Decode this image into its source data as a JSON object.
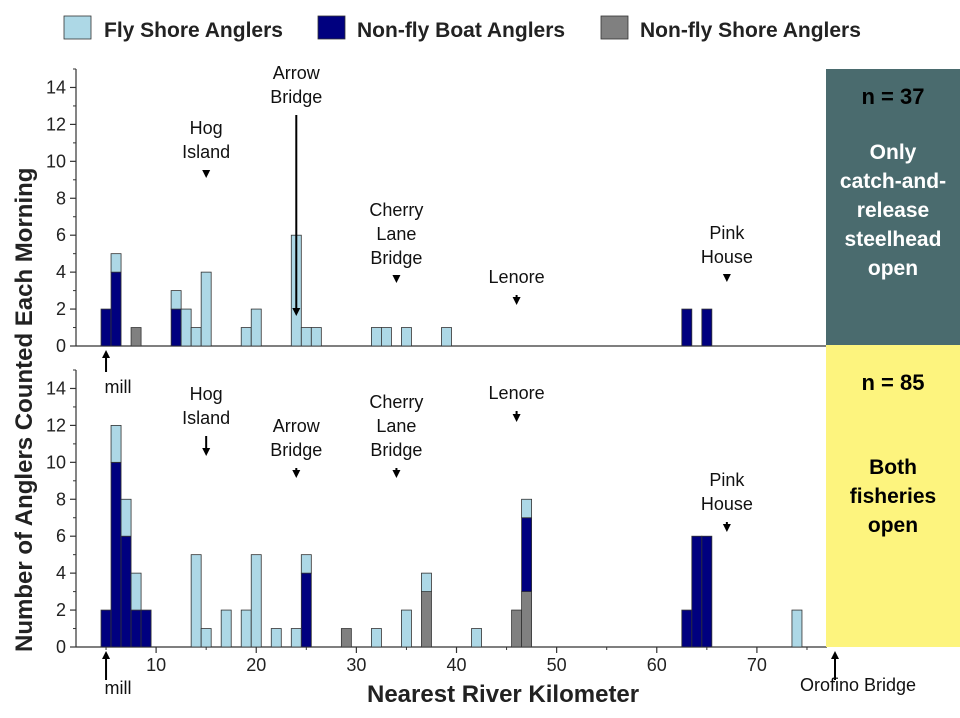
{
  "colors": {
    "fly_shore": "#add8e6",
    "nonfly_boat": "#00007f",
    "nonfly_shore": "#808080",
    "top_panel_bg": "#4a6b6e",
    "bottom_panel_bg": "#fdf47e"
  },
  "legend": {
    "fly_shore_label": "Fly Shore Anglers",
    "nonfly_boat_label": "Non-fly Boat Anglers",
    "nonfly_shore_label": "Non-fly Shore Anglers"
  },
  "axis": {
    "xlabel": "Nearest River Kilometer",
    "ylabel": "Number of Anglers Counted Each Morning"
  },
  "chart_data": [
    {
      "type": "bar",
      "stacked": true,
      "panel": "top",
      "xlabel": "Nearest River Kilometer",
      "ylabel": "Number of Anglers Counted Each Morning",
      "xlim": [
        2,
        77
      ],
      "ylim": [
        0,
        15
      ],
      "xticks": [
        10,
        20,
        30,
        40,
        50,
        60,
        70
      ],
      "yticks": [
        0,
        2,
        4,
        6,
        8,
        10,
        12,
        14
      ],
      "bars": [
        {
          "x": 5,
          "nonfly_boat": 2,
          "fly_shore": 0,
          "nonfly_shore": 0
        },
        {
          "x": 6,
          "nonfly_boat": 4,
          "fly_shore": 1,
          "nonfly_shore": 0
        },
        {
          "x": 8,
          "nonfly_boat": 0,
          "fly_shore": 0,
          "nonfly_shore": 1
        },
        {
          "x": 12,
          "nonfly_boat": 2,
          "fly_shore": 1,
          "nonfly_shore": 0
        },
        {
          "x": 13,
          "nonfly_boat": 0,
          "fly_shore": 2,
          "nonfly_shore": 0
        },
        {
          "x": 14,
          "nonfly_boat": 0,
          "fly_shore": 1,
          "nonfly_shore": 0
        },
        {
          "x": 15,
          "nonfly_boat": 0,
          "fly_shore": 4,
          "nonfly_shore": 0
        },
        {
          "x": 19,
          "nonfly_boat": 0,
          "fly_shore": 1,
          "nonfly_shore": 0
        },
        {
          "x": 20,
          "nonfly_boat": 0,
          "fly_shore": 2,
          "nonfly_shore": 0
        },
        {
          "x": 24,
          "nonfly_boat": 0,
          "fly_shore": 6,
          "nonfly_shore": 0
        },
        {
          "x": 25,
          "nonfly_boat": 0,
          "fly_shore": 1,
          "nonfly_shore": 0
        },
        {
          "x": 26,
          "nonfly_boat": 0,
          "fly_shore": 1,
          "nonfly_shore": 0
        },
        {
          "x": 32,
          "nonfly_boat": 0,
          "fly_shore": 1,
          "nonfly_shore": 0
        },
        {
          "x": 33,
          "nonfly_boat": 0,
          "fly_shore": 1,
          "nonfly_shore": 0
        },
        {
          "x": 35,
          "nonfly_boat": 0,
          "fly_shore": 1,
          "nonfly_shore": 0
        },
        {
          "x": 39,
          "nonfly_boat": 0,
          "fly_shore": 1,
          "nonfly_shore": 0
        },
        {
          "x": 63,
          "nonfly_boat": 2,
          "fly_shore": 0,
          "nonfly_shore": 0
        },
        {
          "x": 65,
          "nonfly_boat": 2,
          "fly_shore": 0,
          "nonfly_shore": 0
        }
      ],
      "annotations": [
        {
          "label_lines": [
            "Arrow",
            "Bridge"
          ],
          "x": 24,
          "dir": "down"
        },
        {
          "label_lines": [
            "Hog",
            "Island"
          ],
          "x": 15,
          "dir": "down"
        },
        {
          "label_lines": [
            "Cherry",
            "Lane",
            "Bridge"
          ],
          "x": 34,
          "dir": "down"
        },
        {
          "label_lines": [
            "Lenore"
          ],
          "x": 46,
          "dir": "down"
        },
        {
          "label_lines": [
            "Pink",
            "House"
          ],
          "x": 67,
          "dir": "down"
        },
        {
          "label_lines": [
            "mill"
          ],
          "x": 5,
          "dir": "up"
        }
      ],
      "panel_label": {
        "n": "n = 37",
        "note_lines": [
          "Only",
          "catch-and-",
          "release",
          "steelhead",
          "open"
        ]
      }
    },
    {
      "type": "bar",
      "stacked": true,
      "panel": "bottom",
      "xlabel": "Nearest River Kilometer",
      "ylabel": "Number of Anglers Counted Each Morning",
      "xlim": [
        2,
        77
      ],
      "ylim": [
        0,
        15
      ],
      "xticks": [
        10,
        20,
        30,
        40,
        50,
        60,
        70
      ],
      "yticks": [
        0,
        2,
        4,
        6,
        8,
        10,
        12,
        14
      ],
      "bars": [
        {
          "x": 5,
          "nonfly_boat": 2,
          "fly_shore": 0,
          "nonfly_shore": 0
        },
        {
          "x": 6,
          "nonfly_boat": 10,
          "fly_shore": 2,
          "nonfly_shore": 0
        },
        {
          "x": 7,
          "nonfly_boat": 6,
          "fly_shore": 2,
          "nonfly_shore": 0
        },
        {
          "x": 8,
          "nonfly_boat": 2,
          "fly_shore": 2,
          "nonfly_shore": 0
        },
        {
          "x": 9,
          "nonfly_boat": 2,
          "fly_shore": 0,
          "nonfly_shore": 0
        },
        {
          "x": 14,
          "nonfly_boat": 0,
          "fly_shore": 5,
          "nonfly_shore": 0
        },
        {
          "x": 15,
          "nonfly_boat": 0,
          "fly_shore": 1,
          "nonfly_shore": 0
        },
        {
          "x": 17,
          "nonfly_boat": 0,
          "fly_shore": 2,
          "nonfly_shore": 0
        },
        {
          "x": 19,
          "nonfly_boat": 0,
          "fly_shore": 2,
          "nonfly_shore": 0
        },
        {
          "x": 20,
          "nonfly_boat": 0,
          "fly_shore": 5,
          "nonfly_shore": 0
        },
        {
          "x": 22,
          "nonfly_boat": 0,
          "fly_shore": 1,
          "nonfly_shore": 0
        },
        {
          "x": 24,
          "nonfly_boat": 0,
          "fly_shore": 1,
          "nonfly_shore": 0
        },
        {
          "x": 25,
          "nonfly_boat": 4,
          "fly_shore": 1,
          "nonfly_shore": 0
        },
        {
          "x": 29,
          "nonfly_boat": 0,
          "fly_shore": 0,
          "nonfly_shore": 1
        },
        {
          "x": 32,
          "nonfly_boat": 0,
          "fly_shore": 1,
          "nonfly_shore": 0
        },
        {
          "x": 35,
          "nonfly_boat": 0,
          "fly_shore": 2,
          "nonfly_shore": 0
        },
        {
          "x": 37,
          "nonfly_boat": 0,
          "fly_shore": 1,
          "nonfly_shore": 3
        },
        {
          "x": 42,
          "nonfly_boat": 0,
          "fly_shore": 1,
          "nonfly_shore": 0
        },
        {
          "x": 46,
          "nonfly_boat": 0,
          "fly_shore": 0,
          "nonfly_shore": 2
        },
        {
          "x": 47,
          "nonfly_boat": 4,
          "fly_shore": 1,
          "nonfly_shore": 3
        },
        {
          "x": 63,
          "nonfly_boat": 2,
          "fly_shore": 0,
          "nonfly_shore": 0
        },
        {
          "x": 64,
          "nonfly_boat": 6,
          "fly_shore": 0,
          "nonfly_shore": 0
        },
        {
          "x": 65,
          "nonfly_boat": 6,
          "fly_shore": 0,
          "nonfly_shore": 0
        },
        {
          "x": 74,
          "nonfly_boat": 0,
          "fly_shore": 2,
          "nonfly_shore": 0
        }
      ],
      "annotations": [
        {
          "label_lines": [
            "Hog",
            "Island"
          ],
          "x": 15,
          "dir": "down"
        },
        {
          "label_lines": [
            "Arrow",
            "Bridge"
          ],
          "x": 24,
          "dir": "down"
        },
        {
          "label_lines": [
            "Cherry",
            "Lane",
            "Bridge"
          ],
          "x": 34,
          "dir": "down"
        },
        {
          "label_lines": [
            "Lenore"
          ],
          "x": 46,
          "dir": "down"
        },
        {
          "label_lines": [
            "Pink",
            "House"
          ],
          "x": 67,
          "dir": "down"
        },
        {
          "label_lines": [
            "mill"
          ],
          "x": 5,
          "dir": "up"
        },
        {
          "label_lines": [
            "Orofino Bridge"
          ],
          "x": 75,
          "dir": "up"
        }
      ],
      "panel_label": {
        "n": "n = 85",
        "note_lines": [
          "Both",
          "fisheries",
          "open"
        ]
      }
    }
  ]
}
